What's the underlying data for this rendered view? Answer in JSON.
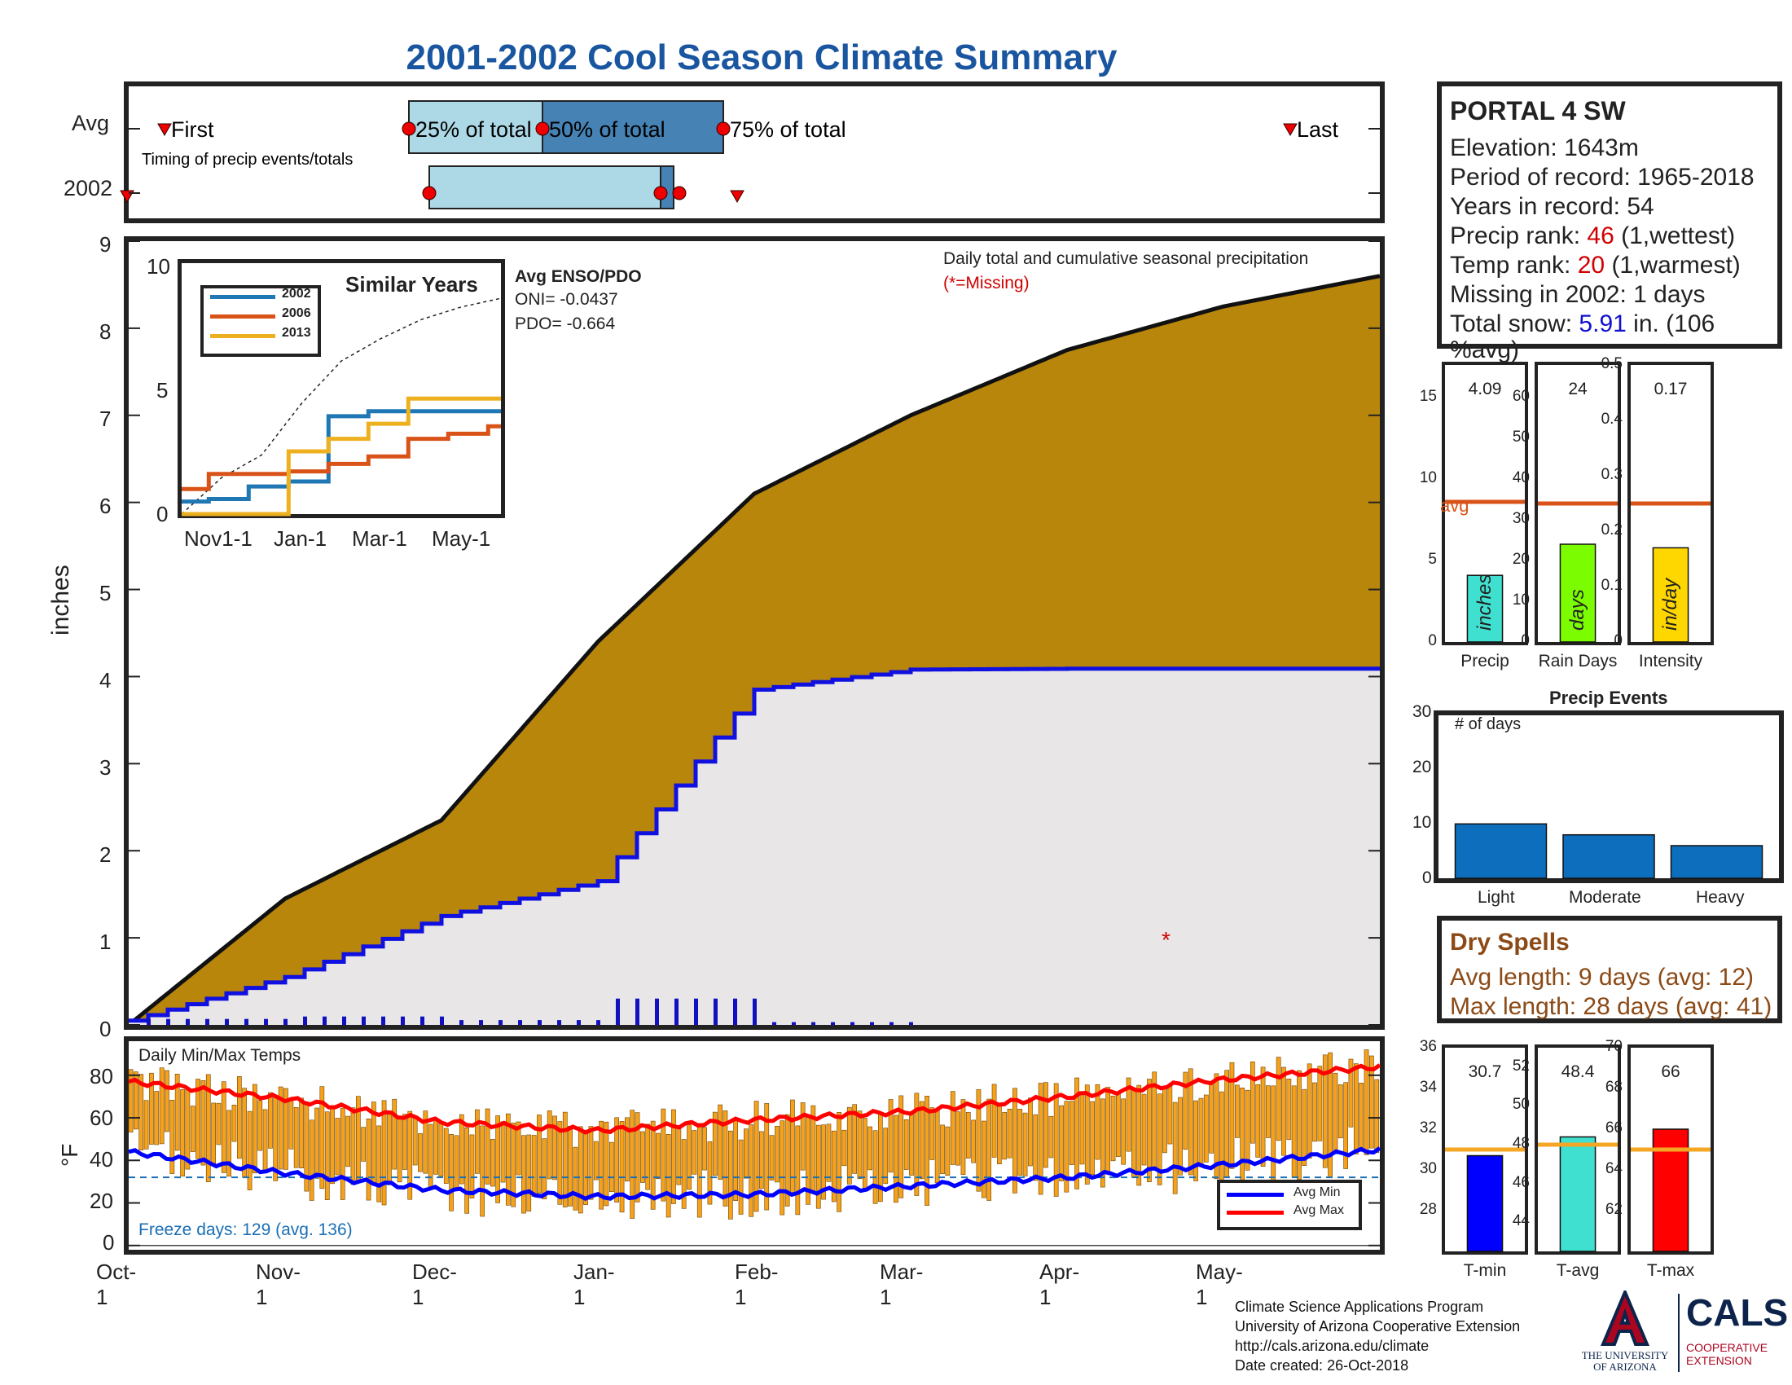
{
  "title": "2001-2002 Cool Season Climate Summary",
  "timing": {
    "row_avg": "Avg",
    "row_year": "2002",
    "first_label": "First",
    "last_label": "Last",
    "p25_label": "25% of total",
    "p50_label": "50% of total",
    "p75_label": "75% of total",
    "caption": "Timing of precip events/totals"
  },
  "main_chart": {
    "ylabel": "inches",
    "yticks": [
      "0",
      "1",
      "2",
      "3",
      "4",
      "5",
      "6",
      "7",
      "8",
      "9"
    ],
    "note": "Daily total and cumulative seasonal precipitation",
    "missing_note": "(*=Missing)",
    "enso_title": "Avg ENSO/PDO",
    "oni": "ONI= -0.0437",
    "pdo": "PDO= -0.664",
    "colors": {
      "avg_fill": "#b8860b",
      "year_fill": "#e8e6e6",
      "year_line": "#1010e0",
      "outline": "#111111"
    }
  },
  "similar_years": {
    "title": "Similar Years",
    "legend": [
      "2002",
      "2006",
      "2013"
    ],
    "series_colors": [
      "#1f77b4",
      "#d95319",
      "#edb120"
    ],
    "yticks": [
      "0",
      "5",
      "10"
    ],
    "xticks": [
      "Nov1-1",
      "Jan-1",
      "Mar-1",
      "May-1"
    ]
  },
  "temps": {
    "label": "Daily Min/Max Temps",
    "ylabel": "°F",
    "yticks": [
      "0",
      "20",
      "40",
      "60",
      "80"
    ],
    "freeze": "Freeze days: 129 (avg. 136)",
    "legend_min": "Avg Min",
    "legend_max": "Avg Max"
  },
  "x_axis": [
    "Oct-1",
    "Nov-1",
    "Dec-1",
    "Jan-1",
    "Feb-1",
    "Mar-1",
    "Apr-1",
    "May-1"
  ],
  "station": {
    "name": "PORTAL 4 SW",
    "elevation": "Elevation: 1643m",
    "period": "Period of record: 1965-2018",
    "years": "Years in record: 54",
    "precip_rank_label": "Precip rank: ",
    "precip_rank_value": "46",
    "precip_rank_suffix": " (1,wettest)",
    "temp_rank_label": "Temp rank: ",
    "temp_rank_value": "20",
    "temp_rank_suffix": " (1,warmest)",
    "missing": "Missing in 2002: 1 days",
    "snow_label": "Total snow: ",
    "snow_value": "5.91",
    "snow_suffix": " in. (106",
    "snow_suffix2": "%avg)"
  },
  "precip_bars": {
    "avg_label": "avg",
    "panels": [
      {
        "xlabel": "Precip",
        "value_text": "4.09",
        "unit": "inches",
        "value": 4.09,
        "avg": 8.6,
        "ymax": 17,
        "yticks": [
          "0",
          "5",
          "10",
          "15"
        ],
        "color": "#40e0d0"
      },
      {
        "xlabel": "Rain Days",
        "value_text": "24",
        "unit": "days",
        "value": 24,
        "avg": 34,
        "ymax": 68,
        "yticks": [
          "0",
          "10",
          "20",
          "30",
          "40",
          "50",
          "60"
        ],
        "color": "#7cfc00"
      },
      {
        "xlabel": "Intensity",
        "value_text": "0.17",
        "unit": "in/day",
        "value": 0.17,
        "avg": 0.25,
        "ymax": 0.5,
        "yticks": [
          "0",
          "0.1",
          "0.2",
          "0.3",
          "0.4",
          "0.5"
        ],
        "color": "#ffd700"
      }
    ]
  },
  "precip_events": {
    "title": "Precip Events",
    "ylabel": "# of days",
    "yticks": [
      "0",
      "10",
      "20",
      "30"
    ],
    "categories": [
      "Light",
      "Moderate",
      "Heavy"
    ],
    "values": [
      10,
      8,
      6
    ]
  },
  "dry_spells": {
    "title": "Dry Spells",
    "avg_length": "Avg length: 9 days (avg: 12)",
    "max_length": "Max length: 28 days (avg: 41)"
  },
  "temp_bars": {
    "panels": [
      {
        "xlabel": "T-min",
        "value_text": "30.7",
        "value": 30.7,
        "avg": 31.0,
        "ymin": 26,
        "ymax": 36,
        "yticks": [
          "28",
          "30",
          "32",
          "34",
          "36"
        ],
        "color": "#0000ff"
      },
      {
        "xlabel": "T-avg",
        "value_text": "48.4",
        "value": 48.4,
        "avg": 48.0,
        "ymin": 42.5,
        "ymax": 53,
        "yticks": [
          "44",
          "46",
          "48",
          "50",
          "52"
        ],
        "color": "#40e0d0"
      },
      {
        "xlabel": "T-max",
        "value_text": "66",
        "value": 66.0,
        "avg": 65.0,
        "ymin": 60,
        "ymax": 70,
        "yticks": [
          "62",
          "64",
          "66",
          "68",
          "70"
        ],
        "color": "#ff0000"
      }
    ]
  },
  "footer": {
    "line1": "Climate Science Applications Program",
    "line2": "University of Arizona Cooperative Extension",
    "line3": "http://cals.arizona.edu/climate",
    "line4": " Date created: 26-Oct-2018"
  },
  "logos": {
    "ua_line1": "THE UNIVERSITY",
    "ua_line2": "OF ARIZONA",
    "cals": "CALS",
    "cals_sub1": "COOPERATIVE",
    "cals_sub2": "EXTENSION"
  },
  "chart_data": [
    {
      "type": "area",
      "title": "",
      "xlabel": "",
      "ylabel": "inches",
      "ylim": [
        0,
        9
      ],
      "x": [
        "Oct-1",
        "Nov-1",
        "Dec-1",
        "Jan-1",
        "Feb-1",
        "Mar-1",
        "Apr-1",
        "May-1",
        "May-31"
      ],
      "series": [
        {
          "values": [
            0,
            1.45,
            2.35,
            4.4,
            6.1,
            7.0,
            7.75,
            8.25,
            8.6
          ]
        },
        {
          "values": [
            0.05,
            0.55,
            1.25,
            1.65,
            3.85,
            4.08,
            4.09,
            4.09,
            4.09
          ]
        }
      ]
    },
    {
      "type": "line",
      "title": "Similar Years",
      "ylim": [
        0,
        10
      ],
      "x": [
        "Oct-1",
        "Nov-1",
        "Dec-1",
        "Jan-1",
        "Feb-1",
        "Mar-1",
        "Apr-1",
        "May-1",
        "May-31"
      ],
      "series": [
        {
          "name": "2002",
          "values": [
            0.5,
            0.6,
            1.1,
            1.3,
            3.9,
            4.1,
            4.1,
            4.1,
            4.1
          ]
        },
        {
          "name": "2006",
          "values": [
            1.0,
            1.6,
            1.6,
            1.7,
            2.0,
            2.3,
            3.0,
            3.2,
            3.5
          ]
        },
        {
          "name": "2013",
          "values": [
            0,
            0,
            0,
            2.5,
            3.0,
            3.6,
            4.6,
            4.6,
            4.6
          ]
        }
      ]
    },
    {
      "type": "line",
      "title": "Daily Min/Max Temps",
      "ylabel": "°F",
      "ylim": [
        -2,
        96
      ],
      "x": [
        "Oct-1",
        "Nov-1",
        "Dec-1",
        "Jan-1",
        "Feb-1",
        "Mar-1",
        "Apr-1",
        "May-1",
        "May-31"
      ],
      "series": [
        {
          "name": "Avg Min",
          "values": [
            44,
            34,
            26,
            23,
            24,
            28,
            32,
            38,
            45
          ]
        },
        {
          "name": "Avg Max",
          "values": [
            77,
            69,
            58,
            54,
            59,
            63,
            70,
            78,
            84
          ]
        }
      ]
    },
    {
      "type": "bar",
      "title": "Precip Events",
      "categories": [
        "Light",
        "Moderate",
        "Heavy"
      ],
      "values": [
        10,
        8,
        6
      ],
      "ylim": [
        0,
        30
      ]
    }
  ]
}
